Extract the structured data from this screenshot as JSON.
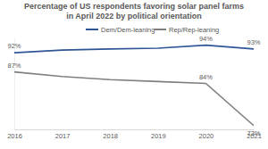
{
  "chart_data": {
    "type": "line",
    "title": "Percentage of US respondents favoring solar panel farms in April 2022 by political orientation",
    "x": [
      2016,
      2017,
      2018,
      2019,
      2020,
      2021
    ],
    "xlim": [
      2016,
      2021
    ],
    "xticks": [
      2016,
      2017,
      2018,
      2019,
      2020,
      2021
    ],
    "ylim": [
      72,
      96
    ],
    "yticks": [],
    "tick_labels": "x",
    "legend": "top",
    "data_labels": true,
    "series": [
      {
        "name": "Dem/Dem-leaning",
        "color": "#2f5597",
        "values": [
          92,
          92.7,
          93,
          93.2,
          94,
          93
        ],
        "value_labels": [
          "92%",
          null,
          null,
          null,
          "94%",
          "93%"
        ]
      },
      {
        "name": "Rep/Rep-leaning",
        "color": "#7f7f7f",
        "values": [
          87,
          85.8,
          85,
          84.5,
          84,
          73
        ],
        "value_labels": [
          "87%",
          null,
          null,
          null,
          "84%",
          "73%"
        ]
      }
    ]
  }
}
